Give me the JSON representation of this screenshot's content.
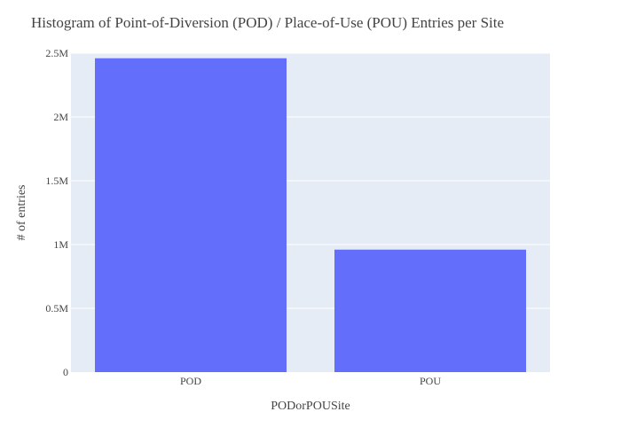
{
  "chart_data": {
    "type": "bar",
    "title": "Histogram of Point-of-Diversion (POD) / Place-of-Use (POU) Entries per Site",
    "xlabel": "PODorPOUSite",
    "ylabel": "# of entries",
    "categories": [
      "POD",
      "POU"
    ],
    "values": [
      2460000,
      960000
    ],
    "ylim": [
      0,
      2500000
    ],
    "yticks": [
      {
        "value": 0,
        "label": "0"
      },
      {
        "value": 500000,
        "label": "0.5M"
      },
      {
        "value": 1000000,
        "label": "1M"
      },
      {
        "value": 1500000,
        "label": "1.5M"
      },
      {
        "value": 2000000,
        "label": "2M"
      },
      {
        "value": 2500000,
        "label": "2.5M"
      }
    ],
    "grid": true,
    "colors": {
      "bar": "#636efa",
      "plot_background": "#e5ecf6",
      "grid": "#ffffff",
      "text": "#444444"
    }
  }
}
